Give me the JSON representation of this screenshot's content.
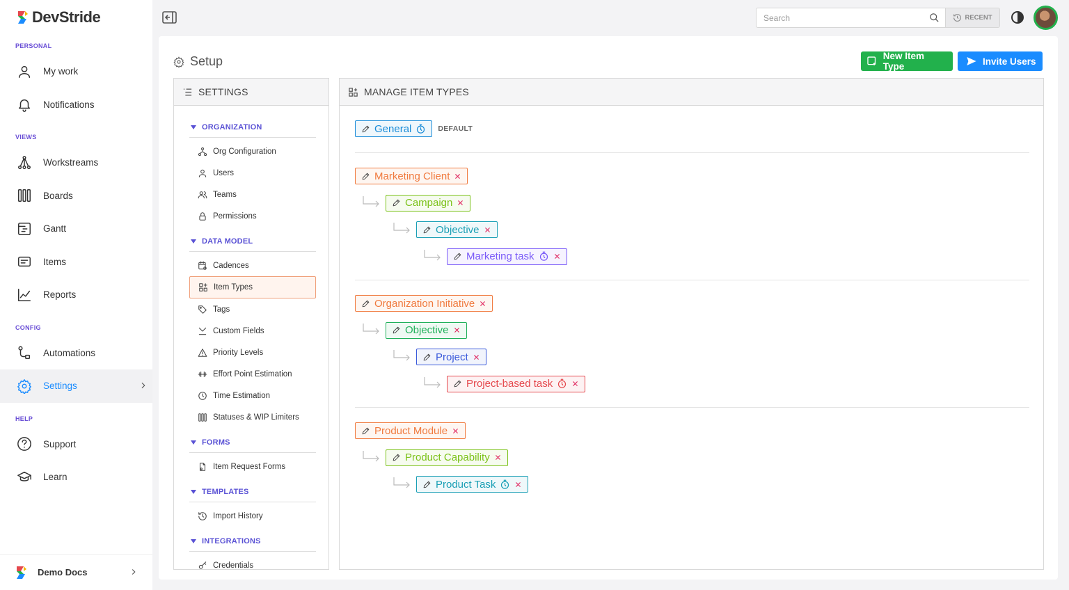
{
  "brand": "DevStride",
  "sidebar": {
    "sections": [
      {
        "label": "PERSONAL",
        "items": [
          "My work",
          "Notifications"
        ]
      },
      {
        "label": "VIEWS",
        "items": [
          "Workstreams",
          "Boards",
          "Gantt",
          "Items",
          "Reports"
        ]
      },
      {
        "label": "CONFIG",
        "items": [
          "Automations",
          "Settings"
        ]
      },
      {
        "label": "HELP",
        "items": [
          "Support",
          "Learn"
        ]
      }
    ]
  },
  "workspace": "Demo Docs",
  "topbar": {
    "search_placeholder": "Search",
    "recent": "RECENT"
  },
  "page": {
    "title": "Setup",
    "buttons": [
      "New Item Type",
      "Invite Users"
    ]
  },
  "settings": {
    "title": "SETTINGS",
    "groups": [
      {
        "label": "ORGANIZATION",
        "items": [
          "Org Configuration",
          "Users",
          "Teams",
          "Permissions"
        ]
      },
      {
        "label": "DATA MODEL",
        "items": [
          "Cadences",
          "Item Types",
          "Tags",
          "Custom Fields",
          "Priority Levels",
          "Effort Point Estimation",
          "Time Estimation",
          "Statuses & WIP Limiters"
        ]
      },
      {
        "label": "FORMS",
        "items": [
          "Item Request Forms"
        ]
      },
      {
        "label": "TEMPLATES",
        "items": [
          "Import History"
        ]
      },
      {
        "label": "INTEGRATIONS",
        "items": [
          "Credentials"
        ]
      }
    ]
  },
  "item_types": {
    "title": "MANAGE ITEM TYPES",
    "default": {
      "name": "General",
      "color": "#1a8cd8",
      "timer": true
    },
    "default_label": "DEFAULT",
    "hierarchies": [
      {
        "name": "Marketing Client",
        "color": "#f07a3e",
        "timer": false,
        "children": [
          {
            "name": "Campaign",
            "color": "#7cc21a",
            "timer": false,
            "children": [
              {
                "name": "Objective",
                "color": "#1a9fb5",
                "timer": false,
                "children": [
                  {
                    "name": "Marketing task",
                    "color": "#7a5af8",
                    "timer": true,
                    "children": []
                  }
                ]
              }
            ]
          }
        ]
      },
      {
        "name": "Organization Initiative",
        "color": "#f07a3e",
        "timer": false,
        "children": [
          {
            "name": "Objective",
            "color": "#20b05a",
            "timer": false,
            "children": [
              {
                "name": "Project",
                "color": "#3b5bdb",
                "timer": false,
                "children": [
                  {
                    "name": "Project-based task",
                    "color": "#e5484d",
                    "timer": true,
                    "children": []
                  }
                ]
              }
            ]
          }
        ]
      },
      {
        "name": "Product Module",
        "color": "#f07a3e",
        "timer": false,
        "children": [
          {
            "name": "Product Capability",
            "color": "#7cc21a",
            "timer": false,
            "children": [
              {
                "name": "Product Task",
                "color": "#1a9fb5",
                "timer": true,
                "children": []
              }
            ]
          }
        ]
      }
    ]
  }
}
